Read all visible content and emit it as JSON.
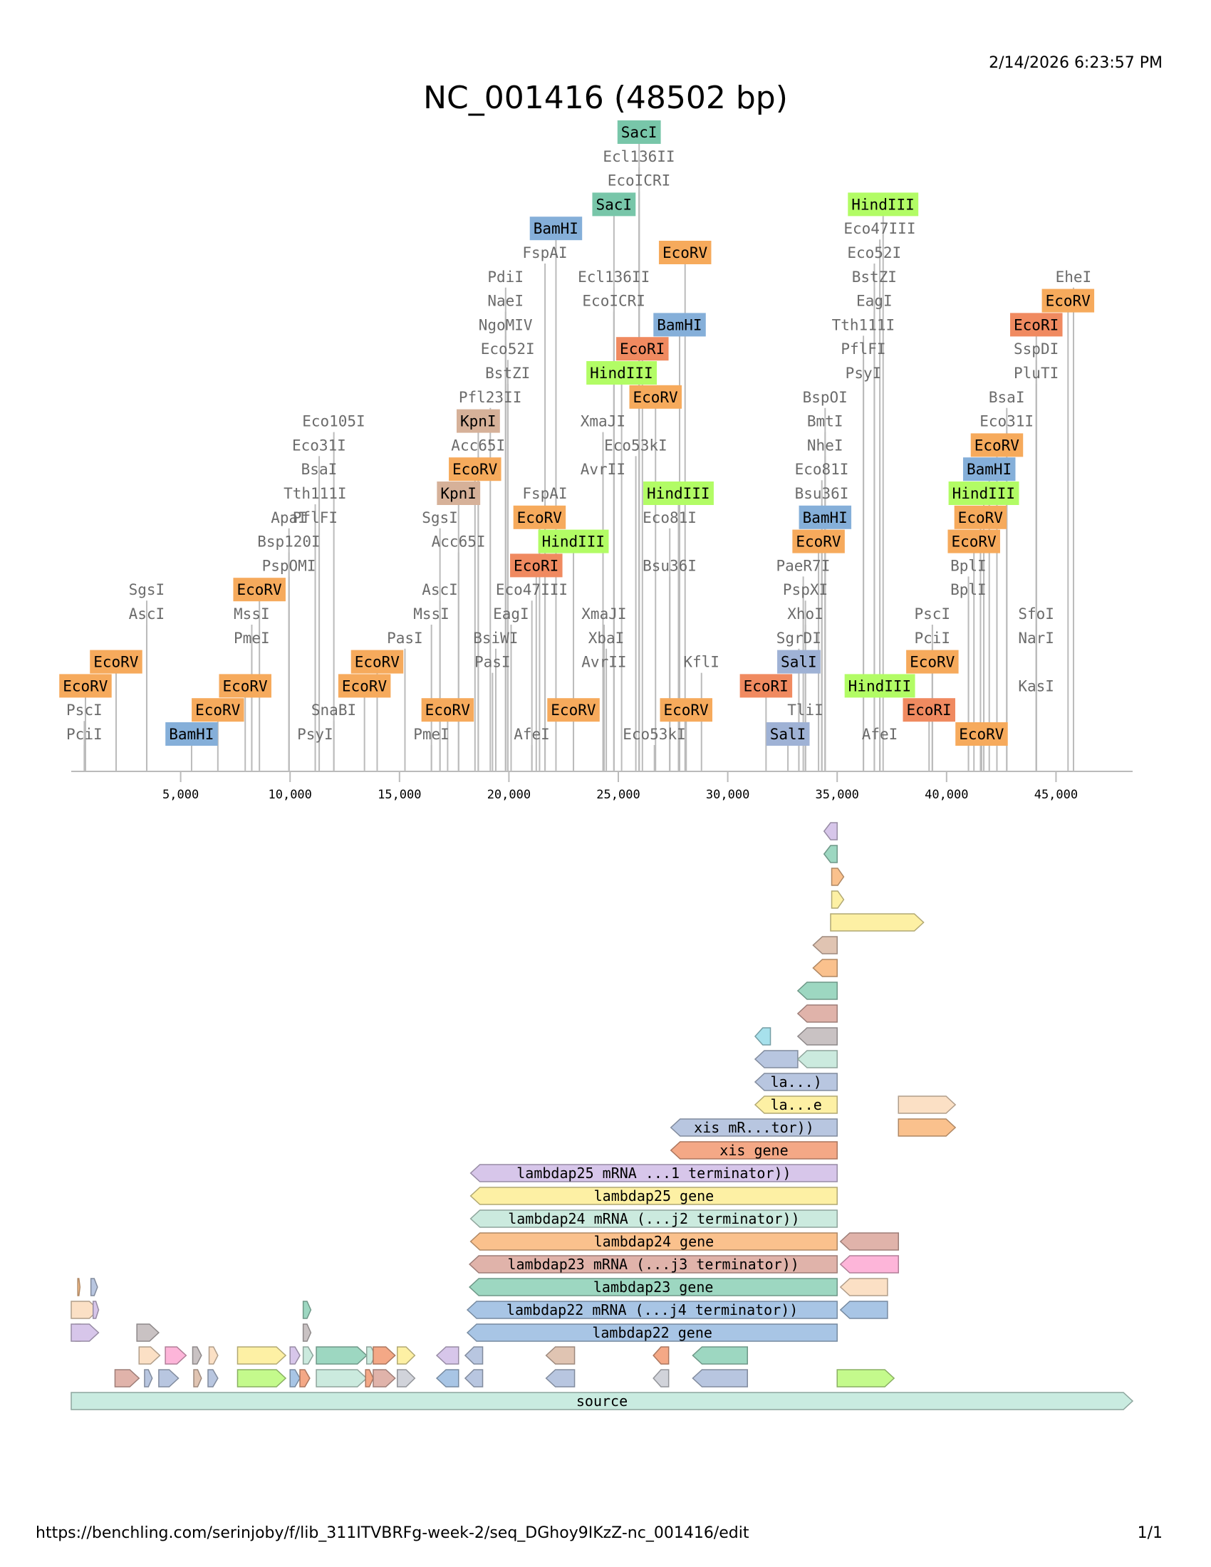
{
  "header": {
    "timestamp": "2/14/2026 6:23:57 PM",
    "title": "NC_001416 (48502 bp)"
  },
  "footer": {
    "url": "https://benchling.com/serinjoby/f/lib_311ITVBRFg-week-2/seq_DGhoy9IKzZ-nc_001416/edit",
    "page": "1/1"
  },
  "colors": {
    "EcoRV": "#f6aa5c",
    "EcoRI": "#f08a60",
    "BamHI": "#85afd9",
    "HindIII": "#b2fc65",
    "SacI": "#78c6a9",
    "KpnI": "#d6b199",
    "SalI": "#9fb2d5",
    "plain_text": "#6b6b6b",
    "cut_line": "#bbbbbb"
  },
  "chart_data": {
    "type": "sequence-map",
    "title": "NC_001416 (48502 bp)",
    "sequence_length_bp": 48502,
    "axis": {
      "min": 0,
      "max": 48502,
      "ticks": [
        5000,
        10000,
        15000,
        20000,
        25000,
        30000,
        35000,
        40000,
        45000
      ],
      "tick_labels": [
        "5,000",
        "10,000",
        "15,000",
        "20,000",
        "25,000",
        "30,000",
        "35,000",
        "40,000",
        "45,000"
      ]
    },
    "enzymes": [
      {
        "name": "EcoRV",
        "boxed": true,
        "pos": 650,
        "row": 3
      },
      {
        "name": "PscI",
        "boxed": false,
        "pos": 600,
        "row": 2
      },
      {
        "name": "PciI",
        "boxed": false,
        "pos": 600,
        "row": 1
      },
      {
        "name": "EcoRV",
        "boxed": true,
        "pos": 2050,
        "row": 4
      },
      {
        "name": "SgsI",
        "boxed": false,
        "pos": 3450,
        "row": 7
      },
      {
        "name": "AscI",
        "boxed": false,
        "pos": 3450,
        "row": 6
      },
      {
        "name": "BamHI",
        "boxed": true,
        "pos": 5500,
        "row": 1
      },
      {
        "name": "EcoRV",
        "boxed": true,
        "pos": 6700,
        "row": 2
      },
      {
        "name": "EcoRV",
        "boxed": true,
        "pos": 7950,
        "row": 3
      },
      {
        "name": "MssI",
        "boxed": false,
        "pos": 8250,
        "row": 6
      },
      {
        "name": "PmeI",
        "boxed": false,
        "pos": 8250,
        "row": 5
      },
      {
        "name": "EcoRV",
        "boxed": true,
        "pos": 8600,
        "row": 7
      },
      {
        "name": "ApaI",
        "boxed": false,
        "pos": 9950,
        "row": 10
      },
      {
        "name": "Bsp120I",
        "boxed": false,
        "pos": 9950,
        "row": 9
      },
      {
        "name": "PspOMI",
        "boxed": false,
        "pos": 9950,
        "row": 8
      },
      {
        "name": "Eco31I",
        "boxed": false,
        "pos": 11330,
        "row": 13
      },
      {
        "name": "BsaI",
        "boxed": false,
        "pos": 11330,
        "row": 12
      },
      {
        "name": "Tth111I",
        "boxed": false,
        "pos": 11150,
        "row": 11
      },
      {
        "name": "PflFI",
        "boxed": false,
        "pos": 11150,
        "row": 10
      },
      {
        "name": "Eco105I",
        "boxed": false,
        "pos": 12000,
        "row": 14
      },
      {
        "name": "SnaBI",
        "boxed": false,
        "pos": 12000,
        "row": 2
      },
      {
        "name": "PsyI",
        "boxed": false,
        "pos": 11150,
        "row": 1
      },
      {
        "name": "EcoRV",
        "boxed": true,
        "pos": 13400,
        "row": 3
      },
      {
        "name": "EcoRV",
        "boxed": true,
        "pos": 13980,
        "row": 4
      },
      {
        "name": "PasI",
        "boxed": false,
        "pos": 15250,
        "row": 5
      },
      {
        "name": "MssI",
        "boxed": false,
        "pos": 16460,
        "row": 6
      },
      {
        "name": "PmeI",
        "boxed": false,
        "pos": 16460,
        "row": 1
      },
      {
        "name": "AscI",
        "boxed": false,
        "pos": 16850,
        "row": 7
      },
      {
        "name": "SgsI",
        "boxed": false,
        "pos": 16850,
        "row": 10
      },
      {
        "name": "Acc65I",
        "boxed": false,
        "pos": 17700,
        "row": 9
      },
      {
        "name": "KpnI",
        "boxed": true,
        "pos": 17700,
        "row": 11
      },
      {
        "name": "EcoRV",
        "boxed": true,
        "pos": 17200,
        "row": 2
      },
      {
        "name": "EcoRV",
        "boxed": true,
        "pos": 18450,
        "row": 12
      },
      {
        "name": "Acc65I",
        "boxed": false,
        "pos": 18600,
        "row": 13
      },
      {
        "name": "KpnI",
        "boxed": true,
        "pos": 18600,
        "row": 14
      },
      {
        "name": "Pfl23II",
        "boxed": false,
        "pos": 19150,
        "row": 15
      },
      {
        "name": "PasI",
        "boxed": false,
        "pos": 19250,
        "row": 4
      },
      {
        "name": "BsiWI",
        "boxed": false,
        "pos": 19400,
        "row": 5
      },
      {
        "name": "EagI",
        "boxed": false,
        "pos": 20100,
        "row": 6
      },
      {
        "name": "BstZI",
        "boxed": false,
        "pos": 19950,
        "row": 16
      },
      {
        "name": "Eco52I",
        "boxed": false,
        "pos": 19950,
        "row": 17
      },
      {
        "name": "NgoMIV",
        "boxed": false,
        "pos": 19850,
        "row": 18
      },
      {
        "name": "NaeI",
        "boxed": false,
        "pos": 19850,
        "row": 19
      },
      {
        "name": "PdiI",
        "boxed": false,
        "pos": 19850,
        "row": 20
      },
      {
        "name": "AfeI",
        "boxed": false,
        "pos": 21050,
        "row": 1
      },
      {
        "name": "Eco47III",
        "boxed": false,
        "pos": 21050,
        "row": 7
      },
      {
        "name": "EcoRI",
        "boxed": true,
        "pos": 21250,
        "row": 8
      },
      {
        "name": "EcoRV",
        "boxed": true,
        "pos": 21400,
        "row": 10
      },
      {
        "name": "FspAI",
        "boxed": false,
        "pos": 21650,
        "row": 11
      },
      {
        "name": "FspAI",
        "boxed": false,
        "pos": 21650,
        "row": 21
      },
      {
        "name": "BamHI",
        "boxed": true,
        "pos": 22150,
        "row": 22
      },
      {
        "name": "HindIII",
        "boxed": true,
        "pos": 22950,
        "row": 9
      },
      {
        "name": "EcoRV",
        "boxed": true,
        "pos": 22950,
        "row": 2
      },
      {
        "name": "XmaJI",
        "boxed": false,
        "pos": 24300,
        "row": 14
      },
      {
        "name": "AvrII",
        "boxed": false,
        "pos": 24300,
        "row": 12
      },
      {
        "name": "XmaJI",
        "boxed": false,
        "pos": 24350,
        "row": 6
      },
      {
        "name": "XbaI",
        "boxed": false,
        "pos": 24450,
        "row": 5
      },
      {
        "name": "AvrII",
        "boxed": false,
        "pos": 24350,
        "row": 4
      },
      {
        "name": "SacI",
        "boxed": true,
        "pos": 24800,
        "row": 23
      },
      {
        "name": "Ecl136II",
        "boxed": false,
        "pos": 24800,
        "row": 20
      },
      {
        "name": "EcoICRI",
        "boxed": false,
        "pos": 24800,
        "row": 19
      },
      {
        "name": "HindIII",
        "boxed": true,
        "pos": 25150,
        "row": 16
      },
      {
        "name": "Eco53kI",
        "boxed": false,
        "pos": 25800,
        "row": 13
      },
      {
        "name": "SacI",
        "boxed": true,
        "pos": 25950,
        "row": 26
      },
      {
        "name": "Ecl136II",
        "boxed": false,
        "pos": 25950,
        "row": 25
      },
      {
        "name": "EcoICRI",
        "boxed": false,
        "pos": 25950,
        "row": 24
      },
      {
        "name": "EcoRI",
        "boxed": true,
        "pos": 26100,
        "row": 17
      },
      {
        "name": "Eco53kI",
        "boxed": false,
        "pos": 26650,
        "row": 1
      },
      {
        "name": "EcoRV",
        "boxed": true,
        "pos": 26700,
        "row": 15
      },
      {
        "name": "Eco81I",
        "boxed": false,
        "pos": 27350,
        "row": 10
      },
      {
        "name": "Bsu36I",
        "boxed": false,
        "pos": 27350,
        "row": 8
      },
      {
        "name": "HindIII",
        "boxed": true,
        "pos": 27750,
        "row": 11
      },
      {
        "name": "BamHI",
        "boxed": true,
        "pos": 27800,
        "row": 18
      },
      {
        "name": "EcoRV",
        "boxed": true,
        "pos": 28050,
        "row": 21
      },
      {
        "name": "EcoRV",
        "boxed": true,
        "pos": 28100,
        "row": 2
      },
      {
        "name": "KflI",
        "boxed": false,
        "pos": 28800,
        "row": 4
      },
      {
        "name": "EcoRI",
        "boxed": true,
        "pos": 31750,
        "row": 3
      },
      {
        "name": "SalI",
        "boxed": true,
        "pos": 32750,
        "row": 1
      },
      {
        "name": "SgrDI",
        "boxed": false,
        "pos": 33250,
        "row": 5
      },
      {
        "name": "SalI",
        "boxed": true,
        "pos": 33250,
        "row": 4
      },
      {
        "name": "TliI",
        "boxed": false,
        "pos": 33550,
        "row": 2
      },
      {
        "name": "XhoI",
        "boxed": false,
        "pos": 33550,
        "row": 6
      },
      {
        "name": "PspXI",
        "boxed": false,
        "pos": 33550,
        "row": 7
      },
      {
        "name": "PaeR7I",
        "boxed": false,
        "pos": 33450,
        "row": 8
      },
      {
        "name": "EcoRV",
        "boxed": true,
        "pos": 34150,
        "row": 9
      },
      {
        "name": "Bsu36I",
        "boxed": false,
        "pos": 34300,
        "row": 11
      },
      {
        "name": "Eco81I",
        "boxed": false,
        "pos": 34300,
        "row": 12
      },
      {
        "name": "BamHI",
        "boxed": true,
        "pos": 34450,
        "row": 10
      },
      {
        "name": "NheI",
        "boxed": false,
        "pos": 34450,
        "row": 13
      },
      {
        "name": "BmtI",
        "boxed": false,
        "pos": 34450,
        "row": 14
      },
      {
        "name": "BspOI",
        "boxed": false,
        "pos": 34450,
        "row": 15
      },
      {
        "name": "PsyI",
        "boxed": false,
        "pos": 36200,
        "row": 16
      },
      {
        "name": "PflFI",
        "boxed": false,
        "pos": 36200,
        "row": 17
      },
      {
        "name": "Tth111I",
        "boxed": false,
        "pos": 36200,
        "row": 18
      },
      {
        "name": "EagI",
        "boxed": false,
        "pos": 36700,
        "row": 19
      },
      {
        "name": "BstZI",
        "boxed": false,
        "pos": 36700,
        "row": 20
      },
      {
        "name": "Eco52I",
        "boxed": false,
        "pos": 36700,
        "row": 21
      },
      {
        "name": "Eco47III",
        "boxed": false,
        "pos": 36950,
        "row": 22
      },
      {
        "name": "HindIII",
        "boxed": true,
        "pos": 37100,
        "row": 23
      },
      {
        "name": "HindIII",
        "boxed": true,
        "pos": 36950,
        "row": 3
      },
      {
        "name": "AfeI",
        "boxed": false,
        "pos": 36950,
        "row": 1
      },
      {
        "name": "EcoRI",
        "boxed": true,
        "pos": 39200,
        "row": 2
      },
      {
        "name": "EcoRV",
        "boxed": true,
        "pos": 39350,
        "row": 4
      },
      {
        "name": "PciI",
        "boxed": false,
        "pos": 39350,
        "row": 5
      },
      {
        "name": "PscI",
        "boxed": false,
        "pos": 39350,
        "row": 6
      },
      {
        "name": "BplI",
        "boxed": false,
        "pos": 41000,
        "row": 7
      },
      {
        "name": "BplI",
        "boxed": false,
        "pos": 41000,
        "row": 8
      },
      {
        "name": "EcoRV",
        "boxed": true,
        "pos": 41250,
        "row": 9
      },
      {
        "name": "EcoRV",
        "boxed": true,
        "pos": 41550,
        "row": 10
      },
      {
        "name": "EcoRV",
        "boxed": true,
        "pos": 41600,
        "row": 1
      },
      {
        "name": "HindIII",
        "boxed": true,
        "pos": 41700,
        "row": 11
      },
      {
        "name": "BamHI",
        "boxed": true,
        "pos": 41950,
        "row": 12
      },
      {
        "name": "EcoRV",
        "boxed": true,
        "pos": 42300,
        "row": 13
      },
      {
        "name": "Eco31I",
        "boxed": false,
        "pos": 42750,
        "row": 14
      },
      {
        "name": "BsaI",
        "boxed": false,
        "pos": 42750,
        "row": 15
      },
      {
        "name": "KasI",
        "boxed": false,
        "pos": 44100,
        "row": 3
      },
      {
        "name": "NarI",
        "boxed": false,
        "pos": 44100,
        "row": 5
      },
      {
        "name": "SfoI",
        "boxed": false,
        "pos": 44100,
        "row": 6
      },
      {
        "name": "PluTI",
        "boxed": false,
        "pos": 44100,
        "row": 16
      },
      {
        "name": "SspDI",
        "boxed": false,
        "pos": 44100,
        "row": 17
      },
      {
        "name": "EcoRI",
        "boxed": true,
        "pos": 44100,
        "row": 18
      },
      {
        "name": "EcoRV",
        "boxed": true,
        "pos": 45550,
        "row": 19
      },
      {
        "name": "EheI",
        "boxed": false,
        "pos": 45800,
        "row": 20
      }
    ],
    "features": [
      {
        "label": "source",
        "start": 0,
        "end": 48502,
        "strand": 1,
        "row": 0,
        "color": "#c9ebe0"
      },
      {
        "label": "lambdap22 gene",
        "start": 18100,
        "end": 35000,
        "strand": -1,
        "row": 3,
        "color": "#a8c5e5"
      },
      {
        "label": "lambdap22 mRNA (...j4 terminator))",
        "start": 18100,
        "end": 35000,
        "strand": -1,
        "row": 4,
        "color": "#a8c5e5"
      },
      {
        "label": "lambdap23 gene",
        "start": 18200,
        "end": 35000,
        "strand": -1,
        "row": 5,
        "color": "#9dd7c1"
      },
      {
        "label": "lambdap23 mRNA (...j3 terminator))",
        "start": 18200,
        "end": 35000,
        "strand": -1,
        "row": 6,
        "color": "#e0b3aa"
      },
      {
        "label": "lambdap24 gene",
        "start": 18250,
        "end": 35000,
        "strand": -1,
        "row": 7,
        "color": "#fac18d"
      },
      {
        "label": "lambdap24 mRNA (...j2 terminator))",
        "start": 18250,
        "end": 35000,
        "strand": -1,
        "row": 8,
        "color": "#cbeade"
      },
      {
        "label": "lambdap25 gene",
        "start": 18250,
        "end": 35000,
        "strand": -1,
        "row": 9,
        "color": "#fdf0a4"
      },
      {
        "label": "lambdap25 mRNA ...1 terminator))",
        "start": 18250,
        "end": 35000,
        "strand": -1,
        "row": 10,
        "color": "#d7c6ea"
      },
      {
        "label": "xis gene",
        "start": 27400,
        "end": 35000,
        "strand": -1,
        "row": 11,
        "color": "#f4a886"
      },
      {
        "label": "xis mR...tor))",
        "start": 27400,
        "end": 35000,
        "strand": -1,
        "row": 12,
        "color": "#b8c6e0"
      },
      {
        "label": "la...e",
        "start": 31250,
        "end": 35000,
        "strand": -1,
        "row": 13,
        "color": "#fdf0a4"
      },
      {
        "label": "la...)",
        "start": 31250,
        "end": 35000,
        "strand": -1,
        "row": 14,
        "color": "#b8c6e0"
      },
      {
        "label": "",
        "start": 31250,
        "end": 33200,
        "strand": -1,
        "row": 15,
        "color": "#b8c6e0"
      },
      {
        "label": "",
        "start": 33200,
        "end": 35000,
        "strand": -1,
        "row": 15,
        "color": "#cbeade"
      },
      {
        "label": "",
        "start": 31250,
        "end": 31950,
        "strand": -1,
        "row": 16,
        "color": "#a7e1ec"
      },
      {
        "label": "",
        "start": 33200,
        "end": 35000,
        "strand": -1,
        "row": 16,
        "color": "#c9c2c3"
      },
      {
        "label": "",
        "start": 33200,
        "end": 35000,
        "strand": -1,
        "row": 17,
        "color": "#e0b3aa"
      },
      {
        "label": "",
        "start": 33200,
        "end": 35000,
        "strand": -1,
        "row": 18,
        "color": "#9dd7c1"
      },
      {
        "label": "",
        "start": 33900,
        "end": 35000,
        "strand": -1,
        "row": 19,
        "color": "#fac18d"
      },
      {
        "label": "",
        "start": 33900,
        "end": 35000,
        "strand": -1,
        "row": 20,
        "color": "#e0c4b2"
      },
      {
        "label": "",
        "start": 34700,
        "end": 38950,
        "strand": 1,
        "row": 21,
        "color": "#fdf0a4"
      },
      {
        "label": "",
        "start": 34750,
        "end": 35300,
        "strand": 1,
        "row": 22,
        "color": "#fdf0a4"
      },
      {
        "label": "",
        "start": 34750,
        "end": 35300,
        "strand": 1,
        "row": 23,
        "color": "#fac18d"
      },
      {
        "label": "",
        "start": 34400,
        "end": 35000,
        "strand": -1,
        "row": 24,
        "color": "#9dd7c1"
      },
      {
        "label": "",
        "start": 34400,
        "end": 35000,
        "strand": -1,
        "row": 25,
        "color": "#d7c6ea"
      },
      {
        "label": "",
        "start": 35150,
        "end": 37800,
        "strand": -1,
        "row": 7,
        "color": "#e0b3aa"
      },
      {
        "label": "",
        "start": 35150,
        "end": 37800,
        "strand": -1,
        "row": 6,
        "color": "#fdb5d9"
      },
      {
        "label": "",
        "start": 35150,
        "end": 37300,
        "strand": -1,
        "row": 5,
        "color": "#fbe0c5"
      },
      {
        "label": "",
        "start": 35150,
        "end": 37300,
        "strand": -1,
        "row": 4,
        "color": "#a8c5e5"
      },
      {
        "label": "",
        "start": 37800,
        "end": 40400,
        "strand": 1,
        "row": 13,
        "color": "#fbe0c5"
      },
      {
        "label": "",
        "start": 37800,
        "end": 40400,
        "strand": 1,
        "row": 12,
        "color": "#fac18d"
      },
      {
        "label": "",
        "start": 35000,
        "end": 37600,
        "strand": 1,
        "row": 1,
        "color": "#c4fa8c"
      }
    ]
  }
}
